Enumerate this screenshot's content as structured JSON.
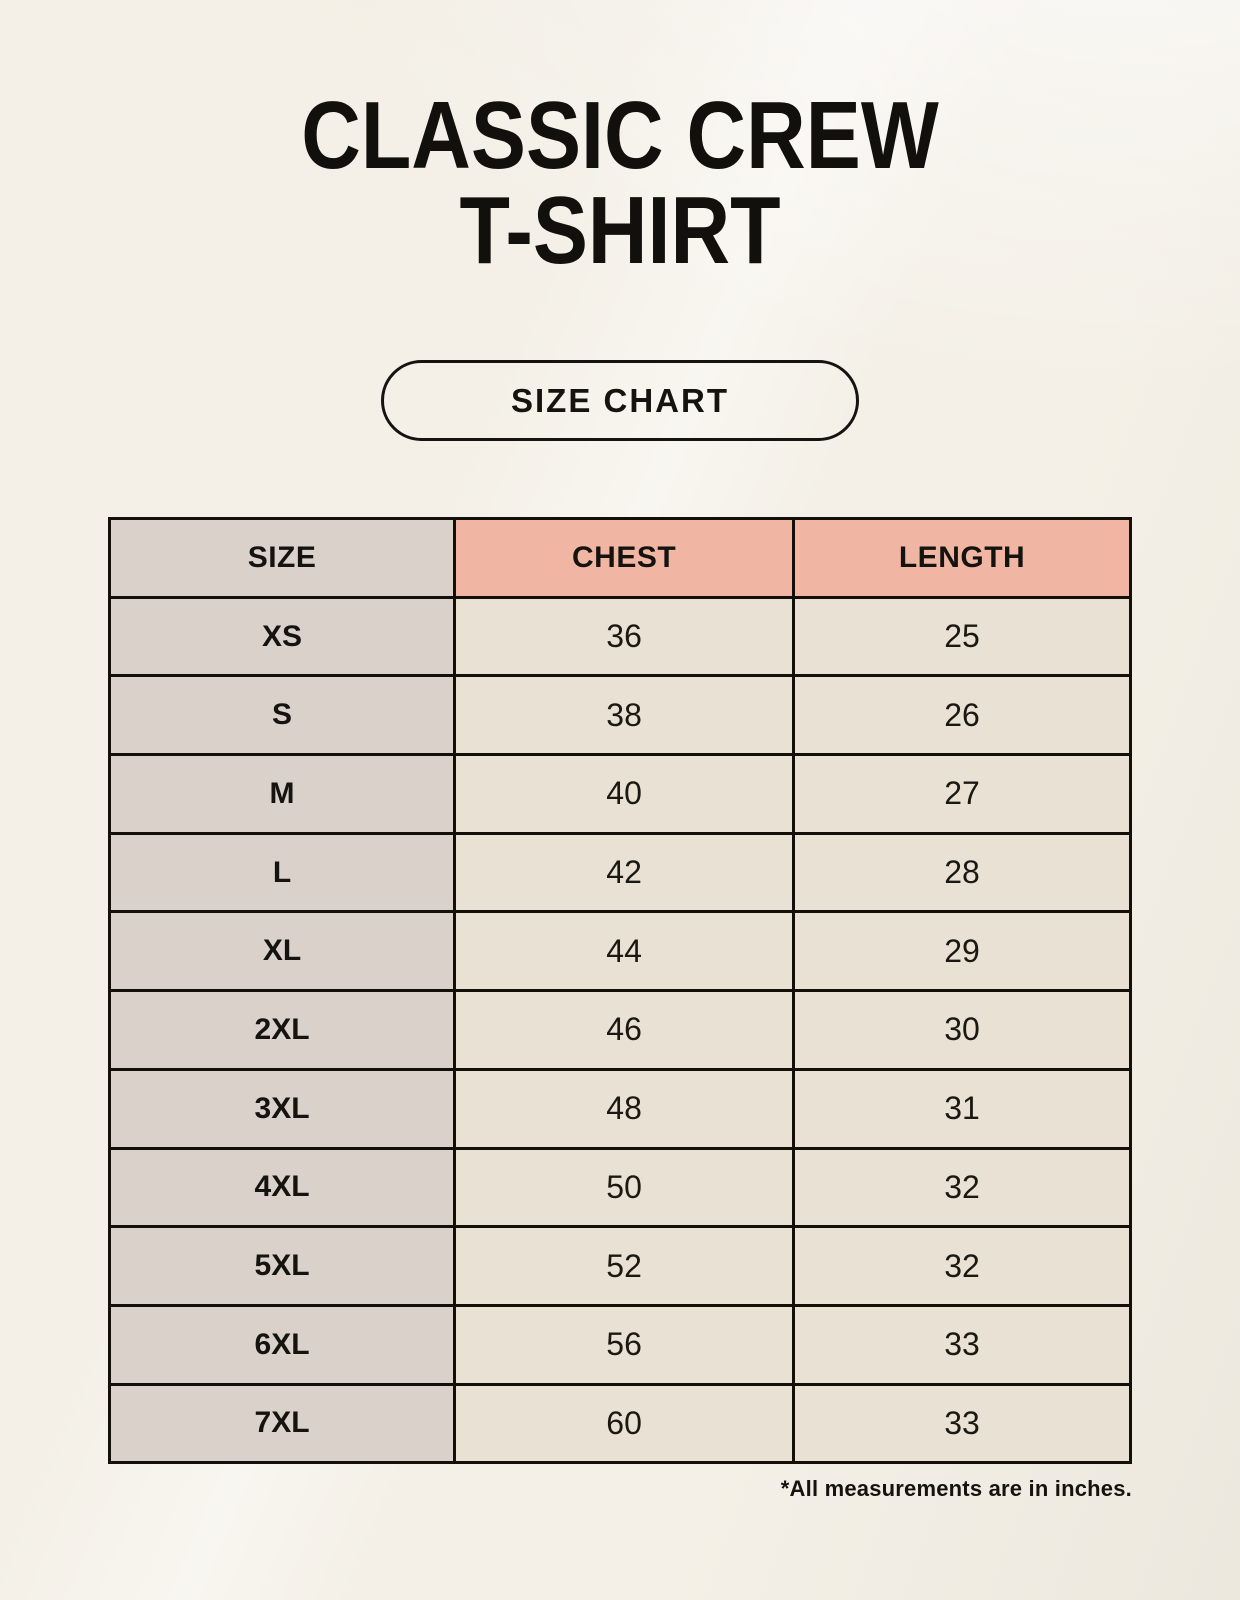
{
  "page": {
    "title": {
      "line1": "CLASSIC CREW",
      "line2": "T-SHIRT"
    },
    "size_chart_button_label": "SIZE CHART",
    "footnote": "*All measurements are in inches."
  },
  "colors": {
    "page_background": "#f4f0e7",
    "size_header_bg": "#d9d1ca",
    "measure_header_bg": "#f1b6a3",
    "size_column_bg": "#d9d1ca",
    "value_cell_bg": "#e9e2d4",
    "border_and_text": "#15130f"
  },
  "chart_data": {
    "type": "table",
    "title": "CLASSIC CREW T-SHIRT",
    "subtitle": "SIZE CHART",
    "columns": [
      "SIZE",
      "CHEST",
      "LENGTH"
    ],
    "rows": [
      [
        "XS",
        "36",
        "25"
      ],
      [
        "S",
        "38",
        "26"
      ],
      [
        "M",
        "40",
        "27"
      ],
      [
        "L",
        "42",
        "28"
      ],
      [
        "XL",
        "44",
        "29"
      ],
      [
        "2XL",
        "46",
        "30"
      ],
      [
        "3XL",
        "48",
        "31"
      ],
      [
        "4XL",
        "50",
        "32"
      ],
      [
        "5XL",
        "52",
        "32"
      ],
      [
        "6XL",
        "56",
        "33"
      ],
      [
        "7XL",
        "60",
        "33"
      ]
    ],
    "units": "inches",
    "note": "*All measurements are in inches."
  }
}
